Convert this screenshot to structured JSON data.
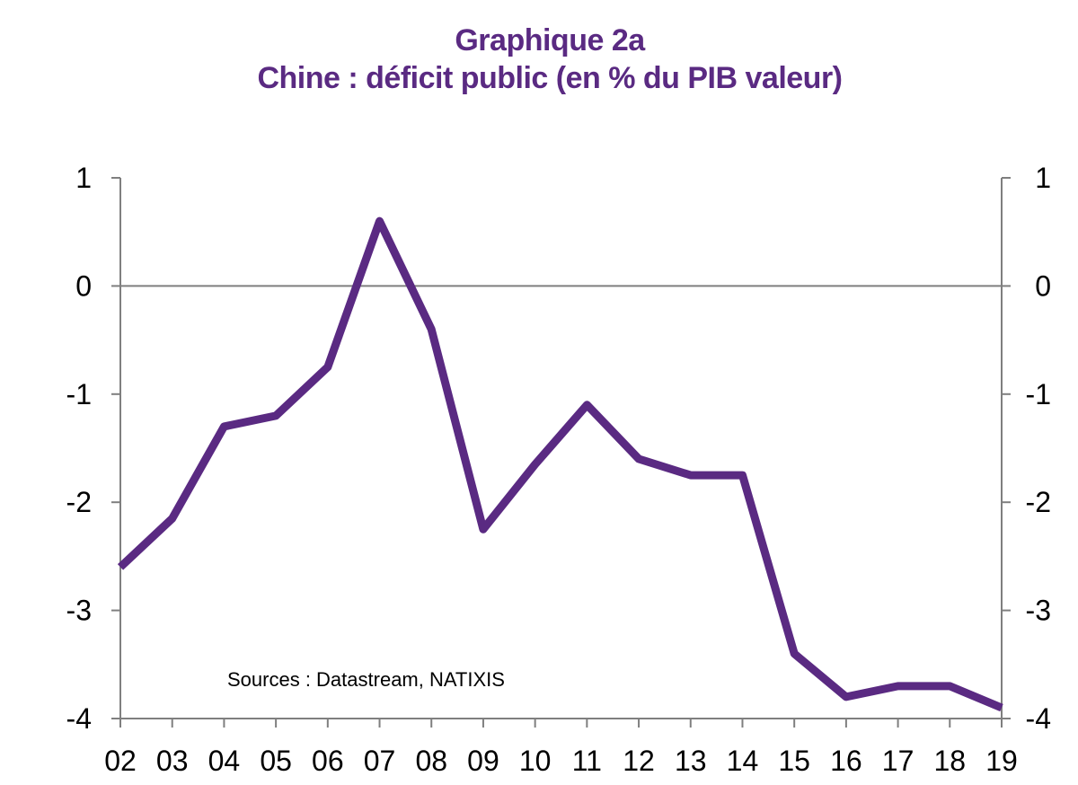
{
  "title": "Graphique 2a",
  "subtitle": "Chine : déficit public (en % du PIB valeur)",
  "source": "Sources : Datastream, NATIXIS",
  "colors": {
    "line": "#5a2a82",
    "title": "#5a2a82",
    "axis": "#7f7f7f"
  },
  "chart_data": {
    "type": "line",
    "categories": [
      "02",
      "03",
      "04",
      "05",
      "06",
      "07",
      "08",
      "09",
      "10",
      "11",
      "12",
      "13",
      "14",
      "15",
      "16",
      "17",
      "18",
      "19"
    ],
    "series": [
      {
        "values": [
          -2.6,
          -2.15,
          -1.3,
          -1.2,
          -0.75,
          0.6,
          -0.4,
          -2.25,
          -1.65,
          -1.1,
          -1.6,
          -1.75,
          -1.75,
          -3.4,
          -3.8,
          -3.7,
          -3.7,
          -3.9
        ]
      }
    ],
    "ylim": [
      -4,
      1
    ],
    "yticks": [
      1,
      0,
      -1,
      -2,
      -3,
      -4
    ],
    "ytick_labels": [
      "1",
      "0",
      "-1",
      "-2",
      "-3",
      "-4"
    ],
    "right_axis": true,
    "grid": false,
    "legend": "none"
  }
}
